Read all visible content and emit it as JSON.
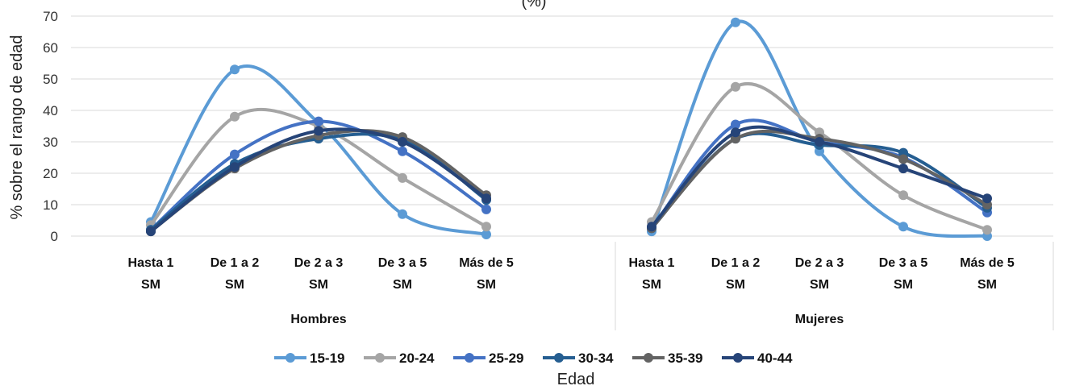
{
  "chart_data": {
    "type": "line",
    "title": "(%)",
    "ylabel": "% sobre el rango de edad",
    "xlabel": "Edad",
    "ylim": [
      0,
      70
    ],
    "yticks": [
      0,
      10,
      20,
      30,
      40,
      50,
      60,
      70
    ],
    "grid": true,
    "smooth": true,
    "legend": "bottom",
    "groups": [
      {
        "name": "Hombres",
        "categories": [
          [
            "Hasta 1",
            "SM"
          ],
          [
            "De 1 a 2",
            "SM"
          ],
          [
            "De 2 a 3",
            "SM"
          ],
          [
            "De 3 a 5",
            "SM"
          ],
          [
            "Más de 5",
            "SM"
          ]
        ]
      },
      {
        "name": "Mujeres",
        "categories": [
          [
            "Hasta 1",
            "SM"
          ],
          [
            "De 1 a 2",
            "SM"
          ],
          [
            "De 2 a 3",
            "SM"
          ],
          [
            "De 3 a 5",
            "SM"
          ],
          [
            "Más de 5",
            "SM"
          ]
        ]
      }
    ],
    "series": [
      {
        "name": "15-19",
        "color": "#5b9bd5",
        "values": [
          [
            4.5,
            53,
            36,
            7,
            0.5
          ],
          [
            1.5,
            68,
            27,
            3,
            0
          ]
        ]
      },
      {
        "name": "20-24",
        "color": "#a5a5a5",
        "values": [
          [
            3.5,
            38,
            35,
            18.5,
            3
          ],
          [
            4.5,
            47.5,
            33,
            13,
            2
          ]
        ]
      },
      {
        "name": "25-29",
        "color": "#4472c4",
        "values": [
          [
            2,
            26,
            36.5,
            27,
            8.5
          ],
          [
            2.5,
            35.5,
            30,
            25,
            7.5
          ]
        ]
      },
      {
        "name": "30-34",
        "color": "#255e91",
        "values": [
          [
            2,
            23,
            31,
            30.5,
            11.5
          ],
          [
            2.5,
            31,
            29,
            26.5,
            9
          ]
        ]
      },
      {
        "name": "35-39",
        "color": "#636363",
        "values": [
          [
            1.5,
            21.5,
            32,
            31.5,
            13
          ],
          [
            2.5,
            31,
            31,
            24.5,
            10
          ]
        ]
      },
      {
        "name": "40-44",
        "color": "#264478",
        "values": [
          [
            1.5,
            22,
            33.5,
            30,
            12
          ],
          [
            3,
            33,
            30,
            21.5,
            12
          ]
        ]
      }
    ]
  }
}
